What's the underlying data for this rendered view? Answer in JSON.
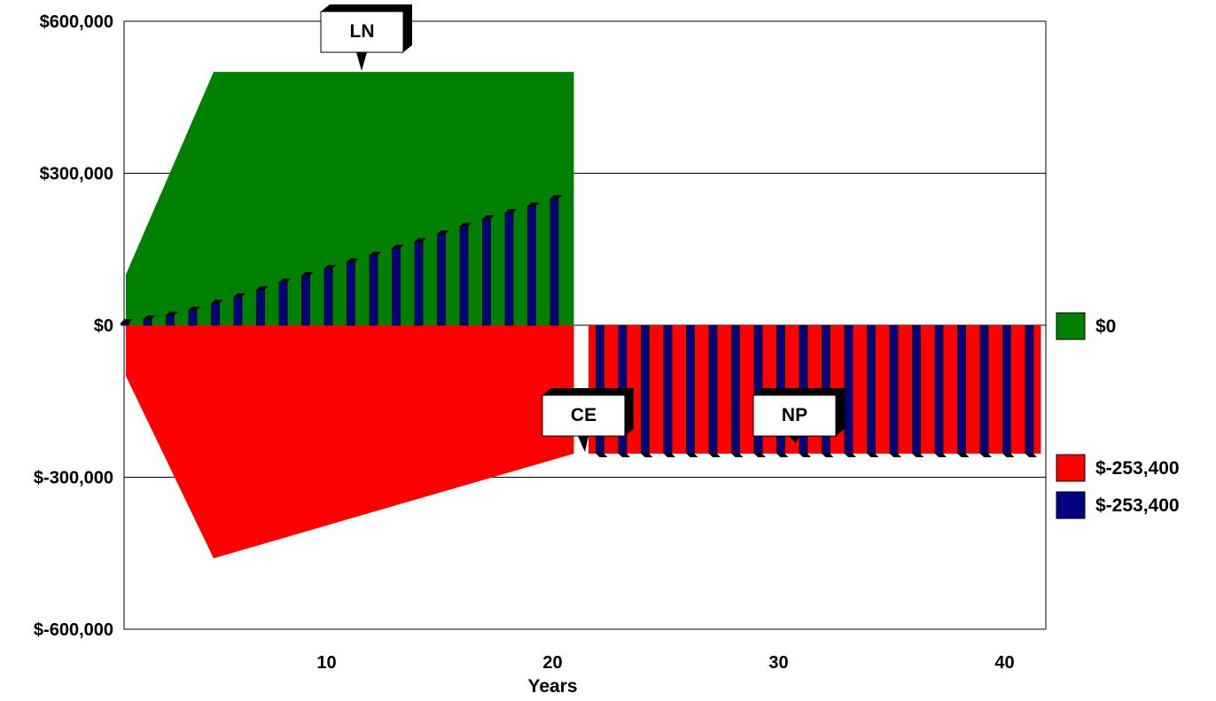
{
  "chart_data": {
    "type": "bar",
    "xlabel": "Years",
    "ylabel": "",
    "title": "",
    "ylim": [
      -600000,
      600000
    ],
    "yticks": [
      600000,
      300000,
      0,
      -300000,
      -600000
    ],
    "ytick_labels": [
      "$600,000",
      "$300,000",
      "$0",
      "$-300,000",
      "$-600,000"
    ],
    "xlim": [
      0,
      41
    ],
    "xticks": [
      10,
      20,
      30,
      40
    ],
    "xtick_labels": [
      "10",
      "20",
      "30",
      "40"
    ],
    "grid": true,
    "colors": {
      "green": "#008000",
      "red": "#ff0000",
      "blue": "#000080",
      "bar_top": "#000000"
    },
    "areas": [
      {
        "key": "LN",
        "color": "#008000",
        "points": [
          [
            1,
            100000
          ],
          [
            5,
            500000
          ],
          [
            20,
            500000
          ],
          [
            20,
            0
          ],
          [
            1,
            0
          ]
        ]
      },
      {
        "key": "CE",
        "color": "#ff0000",
        "points": [
          [
            1,
            -100000
          ],
          [
            5,
            -460000
          ],
          [
            20,
            -253400
          ],
          [
            20,
            0
          ],
          [
            1,
            0
          ]
        ]
      }
    ],
    "series": [
      {
        "key": "bars_positive",
        "color": "#000080",
        "x": [
          1,
          2,
          3,
          4,
          5,
          6,
          7,
          8,
          9,
          10,
          11,
          12,
          13,
          14,
          15,
          16,
          17,
          18,
          19,
          20
        ],
        "values": [
          5000,
          12000,
          20000,
          30000,
          43000,
          56000,
          70000,
          85000,
          98000,
          112000,
          125000,
          138000,
          152000,
          165000,
          180000,
          195000,
          210000,
          222000,
          235000,
          250000
        ]
      },
      {
        "key": "bars_np",
        "color": "#000080",
        "x": [
          21,
          22,
          23,
          24,
          25,
          26,
          27,
          28,
          29,
          30,
          31,
          32,
          33,
          34,
          35,
          36,
          37,
          38,
          39,
          40
        ],
        "values": [
          -253400,
          -253400,
          -253400,
          -253400,
          -253400,
          -253400,
          -253400,
          -253400,
          -253400,
          -253400,
          -253400,
          -253400,
          -253400,
          -253400,
          -253400,
          -253400,
          -253400,
          -253400,
          -253400,
          -253400
        ]
      },
      {
        "key": "bars_ce",
        "color": "#ff0000",
        "x": [
          21,
          22,
          23,
          24,
          25,
          26,
          27,
          28,
          29,
          30,
          31,
          32,
          33,
          34,
          35,
          36,
          37,
          38,
          39,
          40
        ],
        "values": [
          -253400,
          -253400,
          -253400,
          -253400,
          -253400,
          -253400,
          -253400,
          -253400,
          -253400,
          -253400,
          -253400,
          -253400,
          -253400,
          -253400,
          -253400,
          -253400,
          -253400,
          -253400,
          -253400,
          -253400
        ]
      }
    ],
    "callouts": [
      {
        "label": "LN",
        "x": 10,
        "y": 500000
      },
      {
        "label": "CE",
        "x": 20,
        "y": -250000
      },
      {
        "label": "NP",
        "x": 30,
        "y": -220000
      }
    ],
    "legend": [
      {
        "label": "$0",
        "color": "#008000",
        "value": 0
      },
      {
        "label": "$-253,400",
        "color": "#ff0000",
        "value": -253400
      },
      {
        "label": "$-253,400",
        "color": "#000080",
        "value": -253400
      }
    ]
  }
}
